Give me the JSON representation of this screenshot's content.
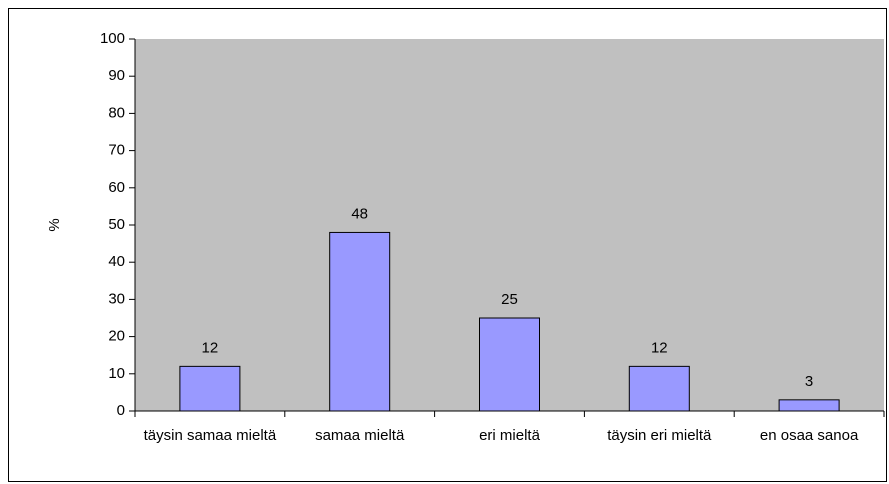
{
  "chart_data": {
    "type": "bar",
    "ylabel": "%",
    "categories": [
      "täysin samaa mieltä",
      "samaa mieltä",
      "eri mieltä",
      "täysin eri mieltä",
      "en osaa sanoa"
    ],
    "values": [
      12,
      48,
      25,
      12,
      3
    ],
    "color": "#9999ff",
    "ylim": [
      0,
      100
    ],
    "yticks": [
      0,
      10,
      20,
      30,
      40,
      50,
      60,
      70,
      80,
      90,
      100
    ],
    "grid": false
  }
}
